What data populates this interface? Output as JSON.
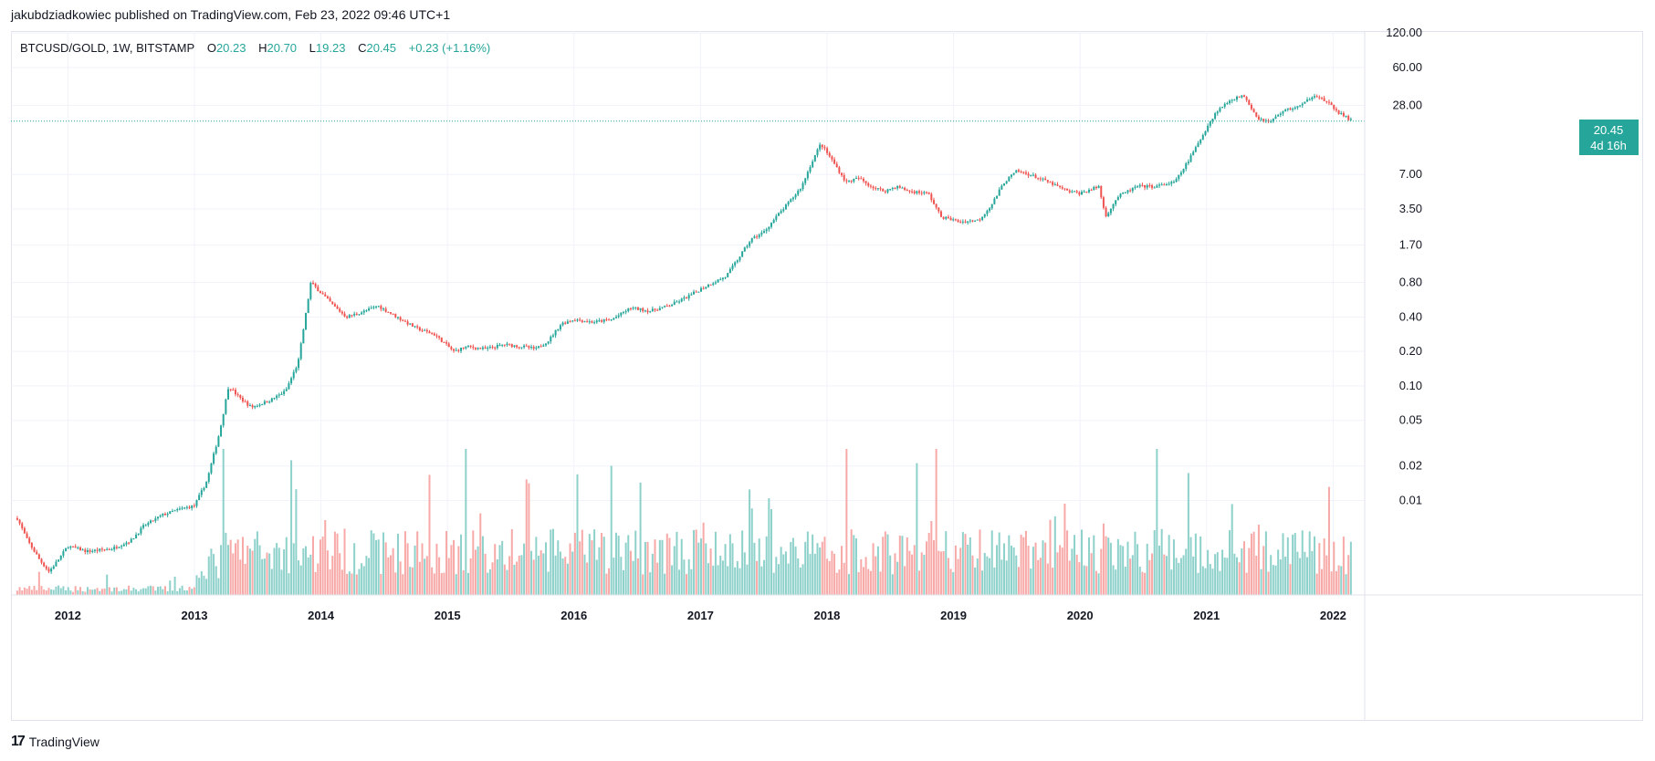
{
  "header": {
    "attribution": "jakubdziadkowiec published on TradingView.com, Feb 23, 2022 09:46 UTC+1"
  },
  "legend": {
    "symbol": "BTCUSD/GOLD, 1W, BITSTAMP",
    "open_label": "O",
    "open": "20.23",
    "high_label": "H",
    "high": "20.70",
    "low_label": "L",
    "low": "19.23",
    "close_label": "C",
    "close": "20.45",
    "change": "+0.23 (+1.16%)"
  },
  "price_badge": {
    "price": "20.45",
    "countdown": "4d 16h"
  },
  "footer": {
    "brand": "TradingView",
    "logo_text": "17"
  },
  "colors": {
    "up": "#26a69a",
    "down": "#ef5350",
    "up_vol": "#8ed1cb",
    "down_vol": "#f7a9a7",
    "grid": "#f0f3fa",
    "axis_text": "#131722"
  },
  "chart_data": {
    "type": "candlestick",
    "title": "BTCUSD/GOLD, 1W, BITSTAMP",
    "yscale": "log",
    "ylim": [
      0.0015,
      125
    ],
    "xlim": [
      2011.55,
      2022.25
    ],
    "y_ticks": [
      "120.00",
      "60.00",
      "28.00",
      "7.00",
      "3.50",
      "1.70",
      "0.80",
      "0.40",
      "0.20",
      "0.10",
      "0.05",
      "0.02",
      "0.01"
    ],
    "x_ticks": [
      "2012",
      "2013",
      "2014",
      "2015",
      "2016",
      "2017",
      "2018",
      "2019",
      "2020",
      "2021",
      "2022"
    ],
    "last_price": 20.45,
    "price_path": [
      [
        2011.6,
        0.007
      ],
      [
        2011.68,
        0.0045
      ],
      [
        2011.78,
        0.003
      ],
      [
        2011.85,
        0.0024
      ],
      [
        2011.92,
        0.003
      ],
      [
        2012.0,
        0.004
      ],
      [
        2012.15,
        0.0036
      ],
      [
        2012.35,
        0.0038
      ],
      [
        2012.5,
        0.0045
      ],
      [
        2012.6,
        0.006
      ],
      [
        2012.75,
        0.0075
      ],
      [
        2012.9,
        0.0085
      ],
      [
        2013.0,
        0.009
      ],
      [
        2013.1,
        0.015
      ],
      [
        2013.2,
        0.04
      ],
      [
        2013.27,
        0.1
      ],
      [
        2013.35,
        0.08
      ],
      [
        2013.45,
        0.065
      ],
      [
        2013.6,
        0.075
      ],
      [
        2013.72,
        0.09
      ],
      [
        2013.82,
        0.16
      ],
      [
        2013.92,
        0.8
      ],
      [
        2014.0,
        0.65
      ],
      [
        2014.1,
        0.5
      ],
      [
        2014.2,
        0.4
      ],
      [
        2014.35,
        0.45
      ],
      [
        2014.45,
        0.5
      ],
      [
        2014.6,
        0.4
      ],
      [
        2014.75,
        0.32
      ],
      [
        2014.9,
        0.28
      ],
      [
        2015.05,
        0.2
      ],
      [
        2015.15,
        0.22
      ],
      [
        2015.3,
        0.21
      ],
      [
        2015.45,
        0.23
      ],
      [
        2015.6,
        0.22
      ],
      [
        2015.7,
        0.21
      ],
      [
        2015.8,
        0.25
      ],
      [
        2015.9,
        0.35
      ],
      [
        2016.0,
        0.38
      ],
      [
        2016.15,
        0.36
      ],
      [
        2016.3,
        0.38
      ],
      [
        2016.45,
        0.48
      ],
      [
        2016.6,
        0.45
      ],
      [
        2016.75,
        0.5
      ],
      [
        2016.9,
        0.6
      ],
      [
        2017.0,
        0.7
      ],
      [
        2017.1,
        0.8
      ],
      [
        2017.2,
        0.9
      ],
      [
        2017.3,
        1.3
      ],
      [
        2017.4,
        1.9
      ],
      [
        2017.5,
        2.2
      ],
      [
        2017.6,
        3.0
      ],
      [
        2017.7,
        4.0
      ],
      [
        2017.8,
        5.5
      ],
      [
        2017.88,
        9.0
      ],
      [
        2017.95,
        13.0
      ],
      [
        2018.05,
        9.0
      ],
      [
        2018.15,
        6.0
      ],
      [
        2018.25,
        6.5
      ],
      [
        2018.35,
        5.5
      ],
      [
        2018.45,
        5.0
      ],
      [
        2018.55,
        5.5
      ],
      [
        2018.65,
        5.0
      ],
      [
        2018.8,
        4.8
      ],
      [
        2018.9,
        3.0
      ],
      [
        2019.05,
        2.7
      ],
      [
        2019.2,
        2.8
      ],
      [
        2019.3,
        3.8
      ],
      [
        2019.4,
        6.0
      ],
      [
        2019.5,
        7.5
      ],
      [
        2019.6,
        7.0
      ],
      [
        2019.75,
        6.0
      ],
      [
        2019.9,
        5.0
      ],
      [
        2020.0,
        4.8
      ],
      [
        2020.15,
        5.5
      ],
      [
        2020.2,
        3.0
      ],
      [
        2020.3,
        4.5
      ],
      [
        2020.45,
        5.5
      ],
      [
        2020.6,
        5.5
      ],
      [
        2020.75,
        6.0
      ],
      [
        2020.85,
        9.0
      ],
      [
        2020.95,
        14.0
      ],
      [
        2021.0,
        18.0
      ],
      [
        2021.08,
        25.0
      ],
      [
        2021.2,
        32.0
      ],
      [
        2021.3,
        34.0
      ],
      [
        2021.4,
        22.0
      ],
      [
        2021.5,
        20.0
      ],
      [
        2021.6,
        25.0
      ],
      [
        2021.75,
        28.0
      ],
      [
        2021.85,
        35.0
      ],
      [
        2021.95,
        30.0
      ],
      [
        2022.05,
        24.0
      ],
      [
        2022.15,
        20.45
      ]
    ]
  }
}
